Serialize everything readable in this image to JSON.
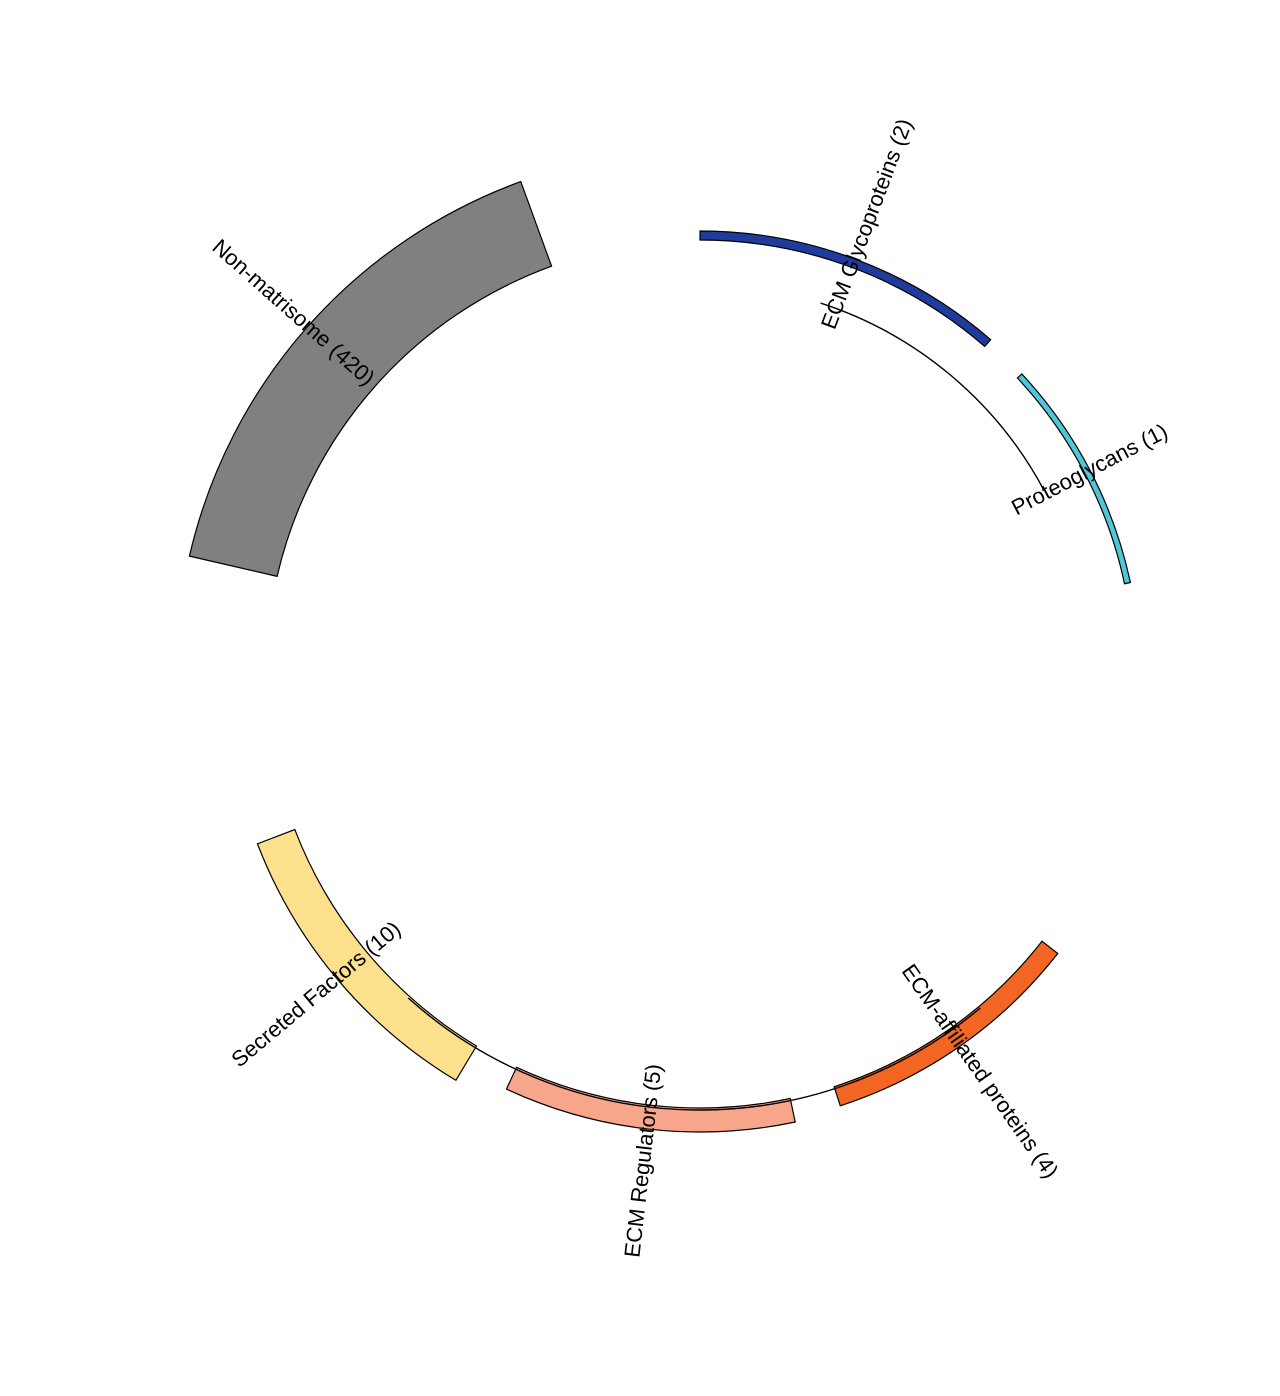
{
  "chart_data": {
    "type": "pie",
    "title": "",
    "series": [
      {
        "label": "ECM Glycoproteins (2)",
        "count": 2,
        "color": "#1f3c9c",
        "thickness": "thin"
      },
      {
        "label": "Proteoglycans (1)",
        "count": 1,
        "color": "#4fc7d8",
        "thickness": "thin"
      },
      {
        "label": "ECM-affiliated proteins (4)",
        "count": 4,
        "color": "#f26522",
        "thickness": "thin"
      },
      {
        "label": "ECM Regulators (5)",
        "count": 5,
        "color": "#f7a58b",
        "thickness": "medium"
      },
      {
        "label": "Secreted Factors (10)",
        "count": 10,
        "color": "#fde08c",
        "thickness": "thick"
      },
      {
        "label": "Non-matrisome (420)",
        "count": 420,
        "color": "#808080",
        "thickness": "thickest"
      }
    ],
    "groups": [
      {
        "members": [
          "ECM Glycoproteins (2)",
          "Proteoglycans (1)"
        ]
      },
      {
        "members": [
          "ECM-affiliated proteins (4)",
          "ECM Regulators (5)",
          "Secreted Factors (10)"
        ]
      }
    ]
  }
}
